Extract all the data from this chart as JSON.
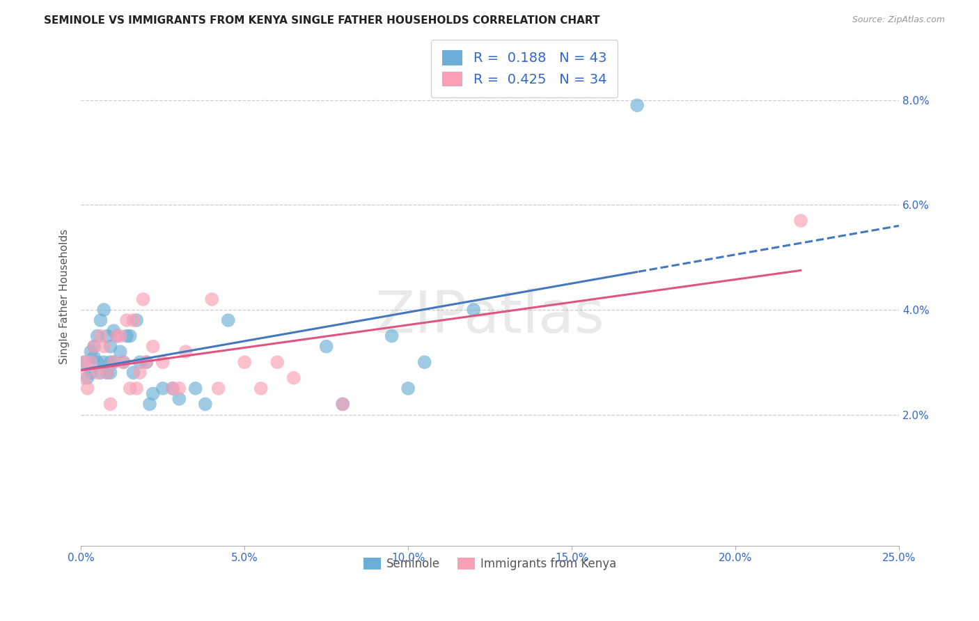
{
  "title": "SEMINOLE VS IMMIGRANTS FROM KENYA SINGLE FATHER HOUSEHOLDS CORRELATION CHART",
  "source": "Source: ZipAtlas.com",
  "ylabel": "Single Father Households",
  "xlim": [
    0.0,
    0.25
  ],
  "ylim": [
    -0.005,
    0.09
  ],
  "watermark": "ZIPatlas",
  "blue_color": "#6baed6",
  "pink_color": "#fa9fb5",
  "blue_line_color": "#4477bb",
  "pink_line_color": "#e05580",
  "text_color": "#3366cc",
  "y_tick_vals": [
    0.02,
    0.04,
    0.06,
    0.08
  ],
  "y_tick_labels": [
    "2.0%",
    "4.0%",
    "6.0%",
    "8.0%"
  ],
  "x_tick_vals": [
    0.0,
    0.05,
    0.1,
    0.15,
    0.2,
    0.25
  ],
  "x_tick_labels": [
    "0.0%",
    "5.0%",
    "10.0%",
    "15.0%",
    "20.0%",
    "25.0%"
  ],
  "seminole_x": [
    0.001,
    0.002,
    0.003,
    0.003,
    0.004,
    0.004,
    0.005,
    0.005,
    0.006,
    0.006,
    0.007,
    0.007,
    0.008,
    0.008,
    0.009,
    0.009,
    0.009,
    0.01,
    0.01,
    0.011,
    0.012,
    0.013,
    0.014,
    0.015,
    0.016,
    0.017,
    0.018,
    0.02,
    0.021,
    0.022,
    0.025,
    0.028,
    0.03,
    0.035,
    0.038,
    0.045,
    0.075,
    0.08,
    0.095,
    0.1,
    0.105,
    0.12,
    0.17
  ],
  "seminole_y": [
    0.03,
    0.027,
    0.028,
    0.032,
    0.031,
    0.033,
    0.035,
    0.03,
    0.038,
    0.028,
    0.04,
    0.03,
    0.028,
    0.035,
    0.033,
    0.03,
    0.028,
    0.03,
    0.036,
    0.035,
    0.032,
    0.03,
    0.035,
    0.035,
    0.028,
    0.038,
    0.03,
    0.03,
    0.022,
    0.024,
    0.025,
    0.025,
    0.023,
    0.025,
    0.022,
    0.038,
    0.033,
    0.022,
    0.035,
    0.025,
    0.03,
    0.04,
    0.079
  ],
  "kenya_x": [
    0.001,
    0.001,
    0.002,
    0.003,
    0.004,
    0.005,
    0.006,
    0.007,
    0.008,
    0.009,
    0.01,
    0.011,
    0.012,
    0.013,
    0.014,
    0.015,
    0.016,
    0.017,
    0.018,
    0.019,
    0.02,
    0.022,
    0.025,
    0.028,
    0.03,
    0.032,
    0.04,
    0.042,
    0.05,
    0.055,
    0.06,
    0.065,
    0.08,
    0.22
  ],
  "kenya_y": [
    0.027,
    0.03,
    0.025,
    0.03,
    0.033,
    0.028,
    0.035,
    0.033,
    0.028,
    0.022,
    0.03,
    0.035,
    0.035,
    0.03,
    0.038,
    0.025,
    0.038,
    0.025,
    0.028,
    0.042,
    0.03,
    0.033,
    0.03,
    0.025,
    0.025,
    0.032,
    0.042,
    0.025,
    0.03,
    0.025,
    0.03,
    0.027,
    0.022,
    0.057
  ]
}
